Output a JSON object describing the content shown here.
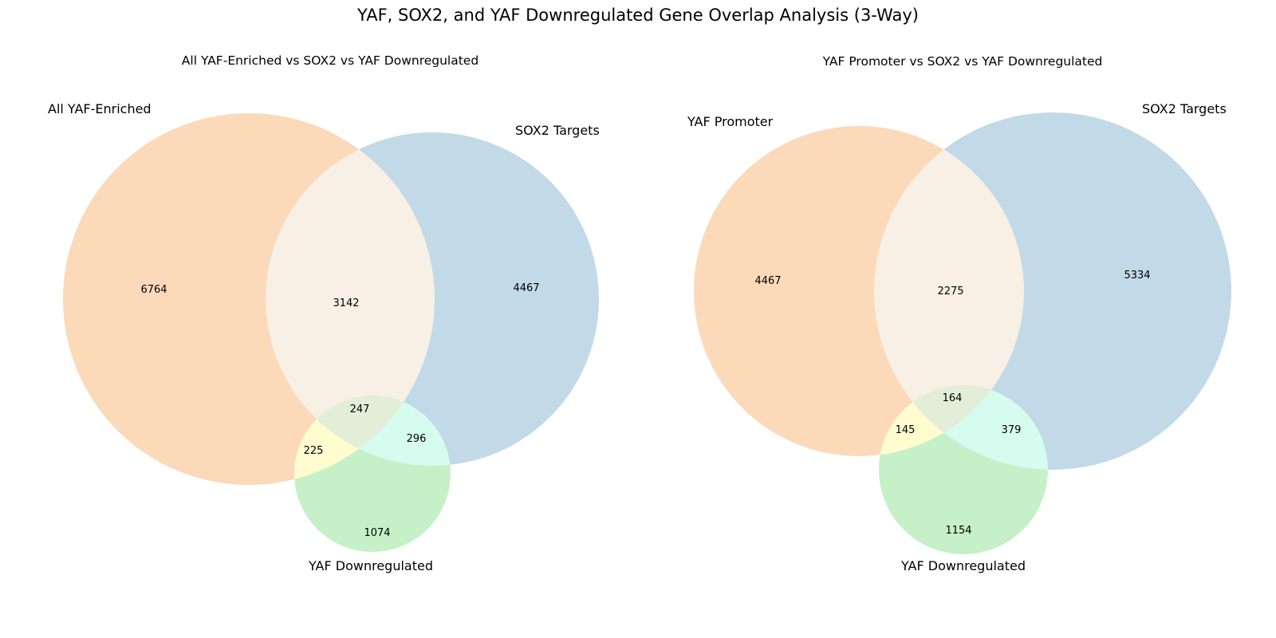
{
  "figure_title": "YAF, SOX2, and YAF Downregulated Gene Overlap Analysis (3-Way)",
  "chart_data": [
    {
      "type": "venn3",
      "title": "All YAF-Enriched vs SOX2 vs YAF Downregulated",
      "sets": [
        {
          "label": "All YAF-Enriched",
          "color": "#fbd9b9"
        },
        {
          "label": "SOX2 Targets",
          "color": "#c2d9e8"
        },
        {
          "label": "YAF Downregulated",
          "color": "#c6f0c8"
        }
      ],
      "regions": {
        "A_only": "6764",
        "B_only": "4467",
        "AB_only": "3142",
        "ABC": "247",
        "AC_only": "225",
        "BC_only": "296",
        "C_only": "1074"
      },
      "overlap_colors": {
        "AB": "#f8f0e4",
        "AC": "#fffcd0",
        "BC": "#d6fcef",
        "ABC": "#e3eed8"
      }
    },
    {
      "type": "venn3",
      "title": "YAF Promoter vs SOX2 vs YAF Downregulated",
      "sets": [
        {
          "label": "YAF Promoter",
          "color": "#fbd9b9"
        },
        {
          "label": "SOX2 Targets",
          "color": "#c2d9e8"
        },
        {
          "label": "YAF Downregulated",
          "color": "#c6f0c8"
        }
      ],
      "regions": {
        "A_only": "4467",
        "B_only": "5334",
        "AB_only": "2275",
        "ABC": "164",
        "AC_only": "145",
        "BC_only": "379",
        "C_only": "1154"
      },
      "overlap_colors": {
        "AB": "#f8f0e4",
        "AC": "#fffcd0",
        "BC": "#d6fcef",
        "ABC": "#e3eed8"
      }
    }
  ]
}
